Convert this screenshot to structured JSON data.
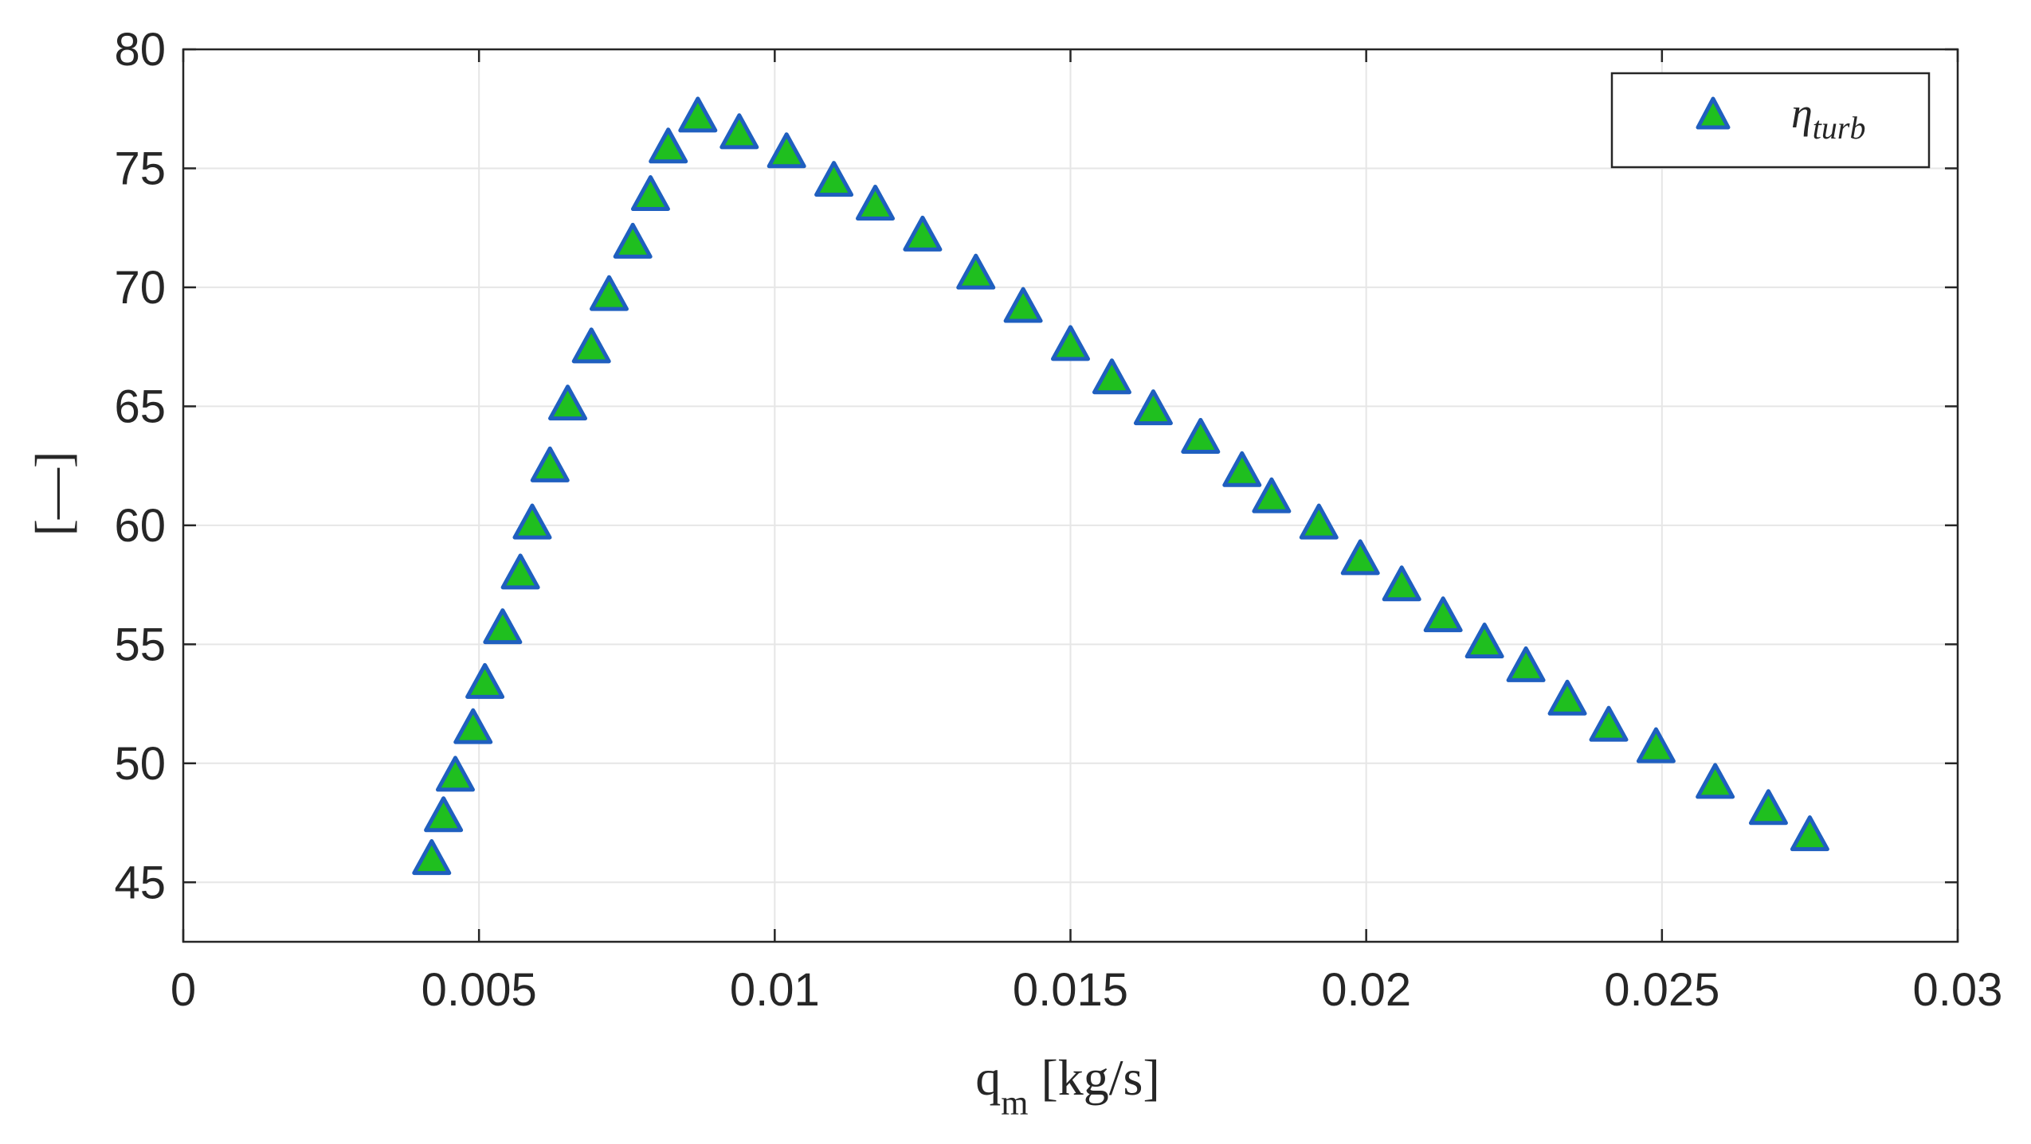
{
  "chart_data": {
    "type": "scatter",
    "title": "",
    "xlabel": "q",
    "xlabel_sub": "m",
    "xlabel_unit": " [kg/s]",
    "ylabel": "[—]",
    "xlim": [
      0,
      0.03
    ],
    "ylim": [
      42.5,
      80
    ],
    "x_ticks": [
      0,
      0.005,
      0.01,
      0.015,
      0.02,
      0.025,
      0.03
    ],
    "x_tick_labels": [
      "0",
      "0.005",
      "0.01",
      "0.015",
      "0.02",
      "0.025",
      "0.03"
    ],
    "y_ticks": [
      45,
      50,
      55,
      60,
      65,
      70,
      75,
      80
    ],
    "y_tick_labels": [
      "45",
      "50",
      "55",
      "60",
      "65",
      "70",
      "75",
      "80"
    ],
    "grid": true,
    "legend_position": "top-right",
    "marker": "triangle",
    "colors": {
      "marker_fill": "#1fbf1f",
      "marker_edge": "#1f5fbf",
      "axis": "#262626",
      "grid": "#e6e6e6"
    },
    "series": [
      {
        "name": "η",
        "name_sub": "turb",
        "x": [
          0.0042,
          0.0044,
          0.0046,
          0.0049,
          0.0051,
          0.0054,
          0.0057,
          0.0059,
          0.0062,
          0.0065,
          0.0069,
          0.0072,
          0.0076,
          0.0079,
          0.0082,
          0.0087,
          0.0094,
          0.0102,
          0.011,
          0.0117,
          0.0125,
          0.0134,
          0.0142,
          0.015,
          0.0157,
          0.0164,
          0.0172,
          0.0179,
          0.0184,
          0.0192,
          0.0199,
          0.0206,
          0.0213,
          0.022,
          0.0227,
          0.0234,
          0.0241,
          0.0249,
          0.0259,
          0.0268,
          0.0275
        ],
        "y": [
          45.9,
          47.7,
          49.4,
          51.4,
          53.3,
          55.6,
          57.9,
          60.0,
          62.4,
          65.0,
          67.4,
          69.6,
          71.8,
          73.8,
          75.8,
          77.1,
          76.4,
          75.6,
          74.4,
          73.4,
          72.1,
          70.5,
          69.1,
          67.5,
          66.1,
          64.8,
          63.6,
          62.2,
          61.1,
          60.0,
          58.5,
          57.4,
          56.1,
          55.0,
          54.0,
          52.6,
          51.5,
          50.6,
          49.1,
          48.0,
          46.9
        ]
      }
    ]
  }
}
